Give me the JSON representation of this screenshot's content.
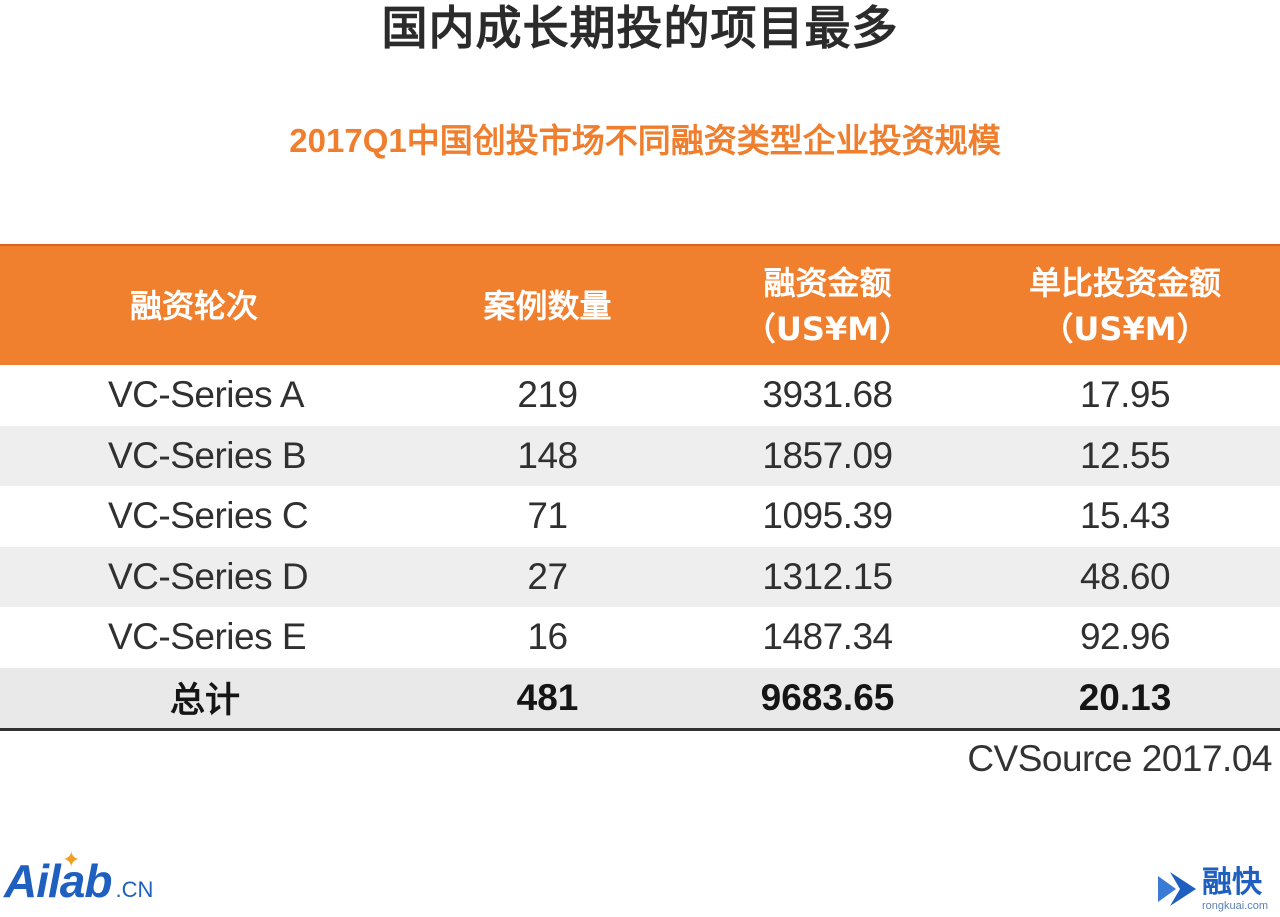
{
  "title": "国内成长期投的项目最多",
  "chart_data": {
    "type": "table",
    "title": "2017Q1中国创投市场不同融资类型企业投资规模",
    "columns": [
      {
        "line1": "融资轮次",
        "line2": ""
      },
      {
        "line1": "案例数量",
        "line2": ""
      },
      {
        "line1": "融资金额",
        "line2": "（US¥M）"
      },
      {
        "line1": "单比投资金额",
        "line2": "（US¥M）"
      }
    ],
    "rows": [
      [
        "VC-Series A",
        "219",
        "3931.68",
        "17.95"
      ],
      [
        "VC-Series B",
        "148",
        "1857.09",
        "12.55"
      ],
      [
        "VC-Series C",
        "71",
        "1095.39",
        "15.43"
      ],
      [
        "VC-Series D",
        "27",
        "1312.15",
        "48.60"
      ],
      [
        "VC-Series E",
        "16",
        "1487.34",
        "92.96"
      ]
    ],
    "total": [
      "总计",
      "481",
      "9683.65",
      "20.13"
    ],
    "source": "CVSource 2017.04"
  },
  "logos": {
    "left_name": "Ailab",
    "left_ext": ".CN",
    "right_name": "融快",
    "right_domain": "rongkuai.com"
  },
  "colors": {
    "accent": "#f07f2e",
    "title": "#2b2b2b",
    "brand_blue": "#1f5fbf"
  }
}
